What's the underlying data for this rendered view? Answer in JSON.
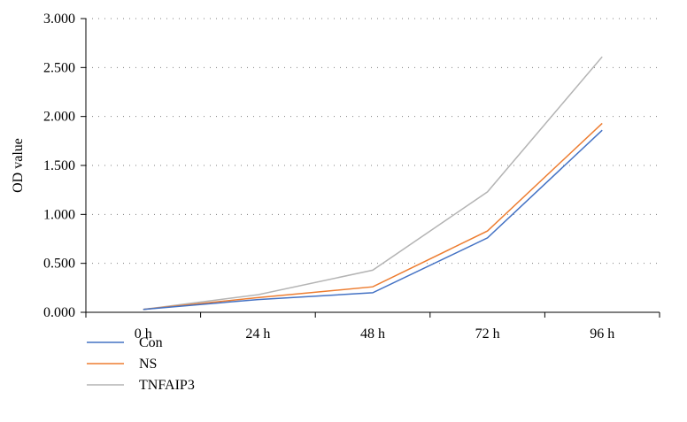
{
  "chart_data": {
    "type": "line",
    "title": "",
    "xlabel": "",
    "ylabel": "OD value",
    "categories": [
      "0 h",
      "24 h",
      "48 h",
      "72 h",
      "96 h"
    ],
    "ylim": [
      0,
      3
    ],
    "yticks": [
      "0.000",
      "0.500",
      "1.000",
      "1.500",
      "2.000",
      "2.500",
      "3.000"
    ],
    "grid": true,
    "legend_position": "bottom-left",
    "series": [
      {
        "name": "Con",
        "color": "#4472c4",
        "values": [
          0.03,
          0.13,
          0.2,
          0.76,
          1.86
        ]
      },
      {
        "name": "NS",
        "color": "#ed7d31",
        "values": [
          0.03,
          0.15,
          0.26,
          0.83,
          1.93
        ]
      },
      {
        "name": "TNFAIP3",
        "color": "#b4b4b4",
        "values": [
          0.03,
          0.18,
          0.43,
          1.23,
          2.61
        ]
      }
    ]
  }
}
